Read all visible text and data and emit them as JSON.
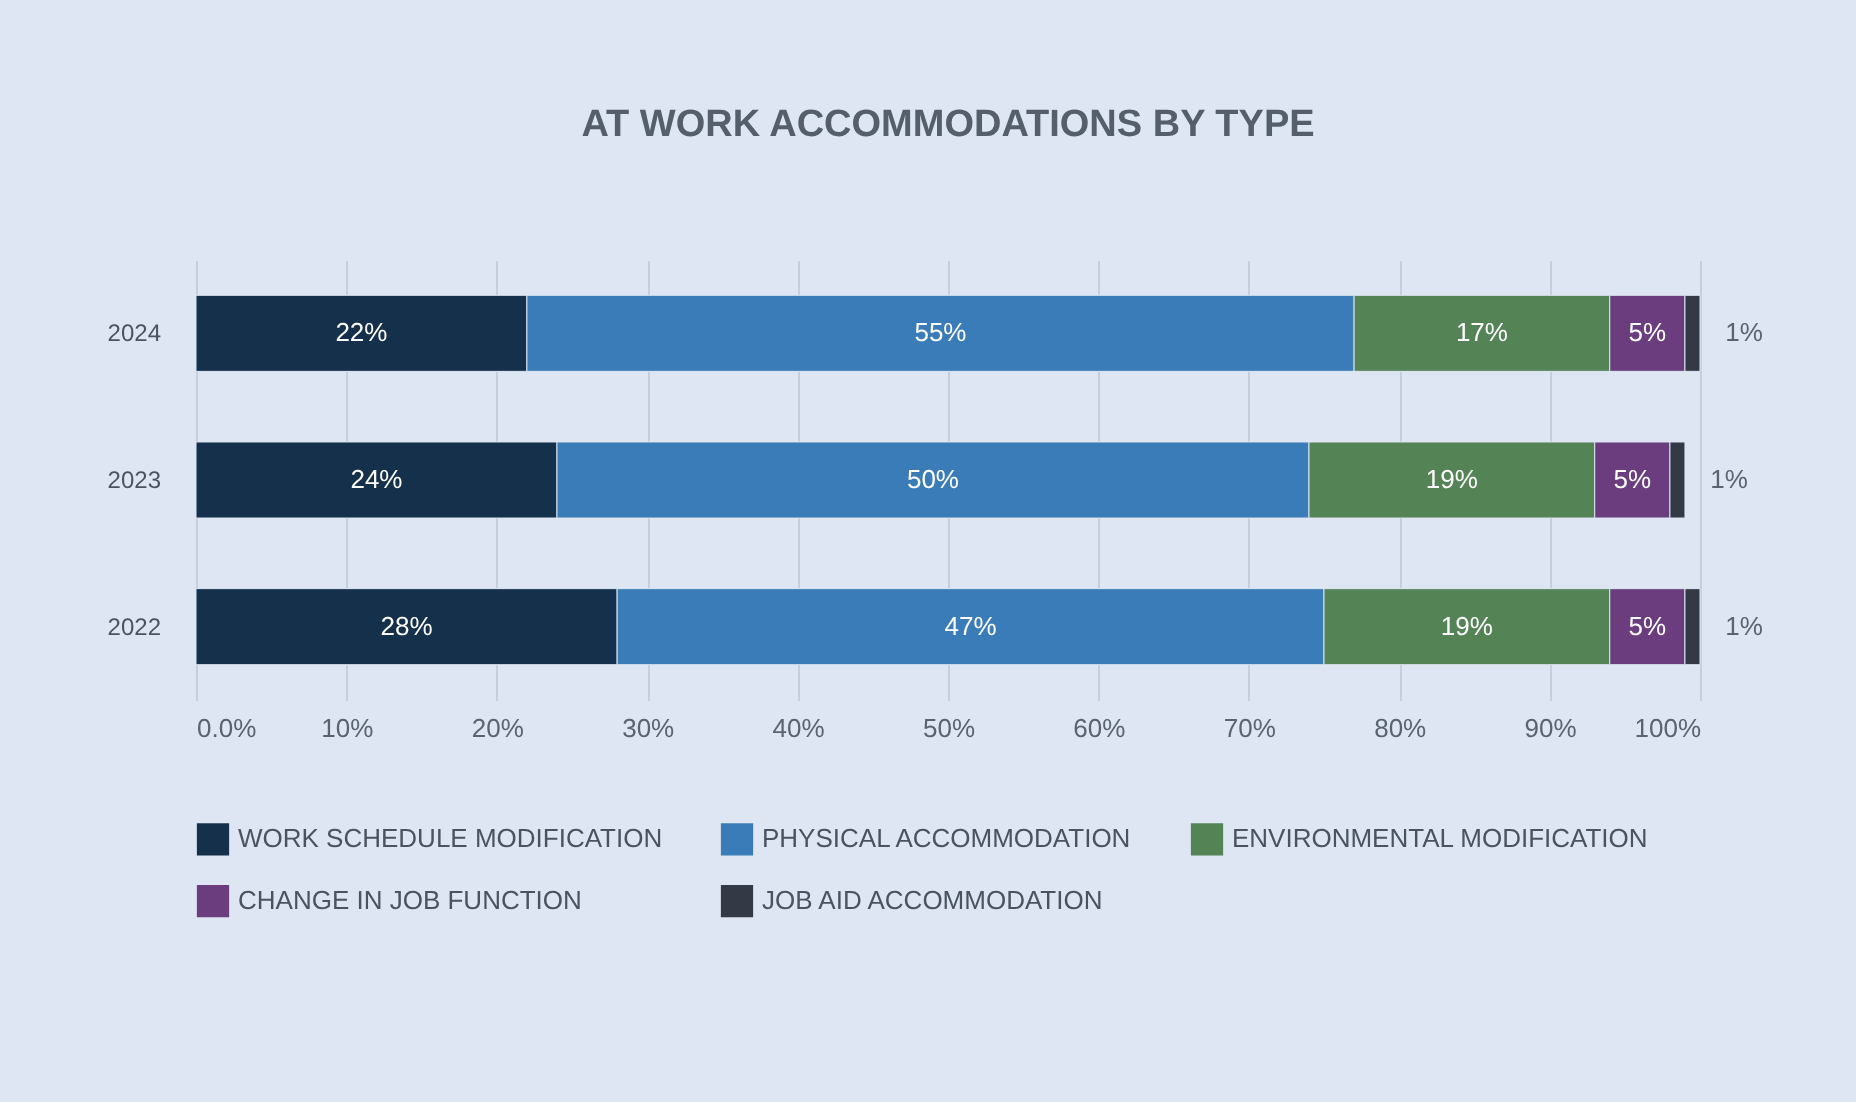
{
  "chart_data": {
    "type": "bar",
    "title": "AT WORK ACCOMMODATIONS BY TYPE",
    "orientation": "horizontal",
    "stacked": true,
    "categories": [
      "2024",
      "2023",
      "2022"
    ],
    "series": [
      {
        "name": "WORK SCHEDULE MODIFICATION",
        "color": "#14304a",
        "values": [
          22,
          24,
          28
        ],
        "value_labels": [
          "22%",
          "24%",
          "28%"
        ]
      },
      {
        "name": "PHYSICAL ACCOMMODATION",
        "color": "#3a7cb8",
        "values": [
          55,
          50,
          47
        ],
        "value_labels": [
          "55%",
          "50%",
          "47%"
        ]
      },
      {
        "name": "ENVIRONMENTAL MODIFICATION",
        "color": "#548356",
        "values": [
          17,
          19,
          19
        ],
        "value_labels": [
          "17%",
          "19%",
          "19%"
        ]
      },
      {
        "name": "CHANGE IN JOB FUNCTION",
        "color": "#6b3d7f",
        "values": [
          5,
          5,
          5
        ],
        "value_labels": [
          "5%",
          "5%",
          "5%"
        ]
      },
      {
        "name": "JOB AID ACCOMMODATION",
        "color": "#333a45",
        "values": [
          1,
          1,
          1
        ],
        "value_labels": [
          "1%",
          "1%",
          "1%"
        ]
      }
    ],
    "xlim": [
      0,
      100
    ],
    "xticks": [
      {
        "value": 0,
        "label": "0.0%"
      },
      {
        "value": 10,
        "label": "10%"
      },
      {
        "value": 20,
        "label": "20%"
      },
      {
        "value": 30,
        "label": "30%"
      },
      {
        "value": 40,
        "label": "40%"
      },
      {
        "value": 50,
        "label": "50%"
      },
      {
        "value": 60,
        "label": "60%"
      },
      {
        "value": 70,
        "label": "70%"
      },
      {
        "value": 80,
        "label": "80%"
      },
      {
        "value": 90,
        "label": "90%"
      },
      {
        "value": 100,
        "label": "100%"
      }
    ],
    "grid": "x",
    "legend": "bottom"
  }
}
